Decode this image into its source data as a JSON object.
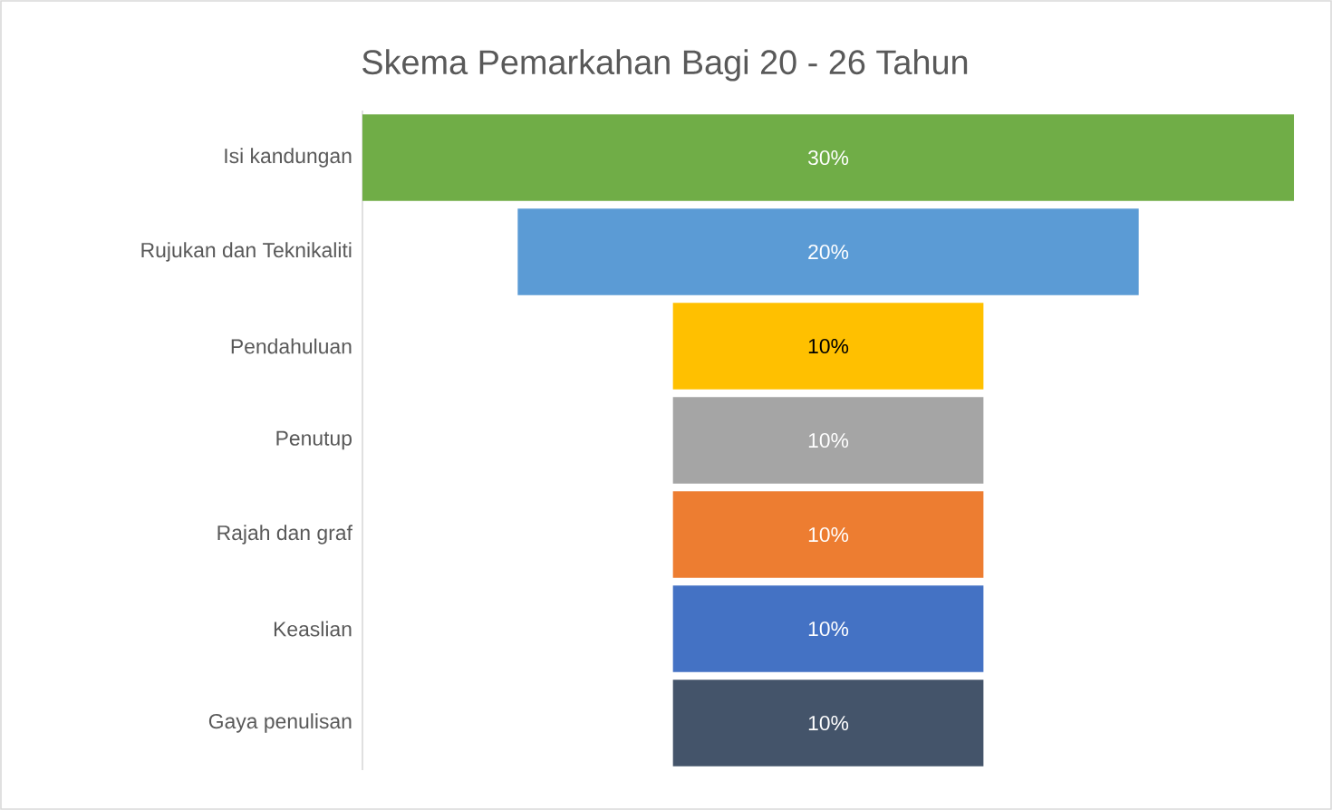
{
  "chart_data": {
    "type": "other",
    "title": "Skema Pemarkahan Bagi 20 - 26 Tahun",
    "categories": [
      "Isi kandungan",
      "Rujukan dan Teknikaliti",
      "Pendahuluan",
      "Penutup",
      "Rajah dan graf",
      "Keaslian",
      "Gaya penulisan"
    ],
    "values": [
      30,
      20,
      10,
      10,
      10,
      10,
      10
    ],
    "value_labels": [
      "30%",
      "20%",
      "10%",
      "10%",
      "10%",
      "10%",
      "10%"
    ],
    "colors": [
      "#70ad47",
      "#5b9bd5",
      "#ffc000",
      "#a5a5a5",
      "#ed7d31",
      "#4472c4",
      "#44546a"
    ]
  }
}
